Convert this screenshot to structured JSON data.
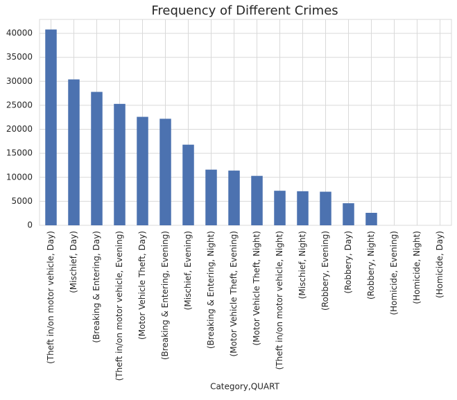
{
  "chart_data": {
    "type": "bar",
    "title": "Frequency of Different Crimes",
    "xlabel": "Category,QUART",
    "categories": [
      "(Theft in/on motor vehicle, Day)",
      "(Mischief, Day)",
      "(Breaking & Entering, Day)",
      "(Theft in/on motor vehicle, Evening)",
      "(Motor Vehicle Theft, Day)",
      "(Breaking & Entering, Evening)",
      "(Mischief, Evening)",
      "(Breaking & Entering, Night)",
      "(Motor Vehicle Theft, Evening)",
      "(Motor Vehicle Theft, Night)",
      "(Theft in/on motor vehicle, Night)",
      "(Mischief, Night)",
      "(Robbery, Evening)",
      "(Robbery, Day)",
      "(Robbery, Night)",
      "(Homicide, Evening)",
      "(Homicide, Night)",
      "(Homicide, Day)"
    ],
    "values": [
      40800,
      30400,
      27800,
      25300,
      22600,
      22200,
      16800,
      11600,
      11400,
      10300,
      7200,
      7100,
      7000,
      4600,
      2600,
      0,
      0,
      0
    ],
    "color": "#4c72b0",
    "ylim": [
      0,
      42900
    ],
    "yticks": [
      0,
      5000,
      10000,
      15000,
      20000,
      25000,
      30000,
      35000,
      40000
    ],
    "grid": true
  }
}
